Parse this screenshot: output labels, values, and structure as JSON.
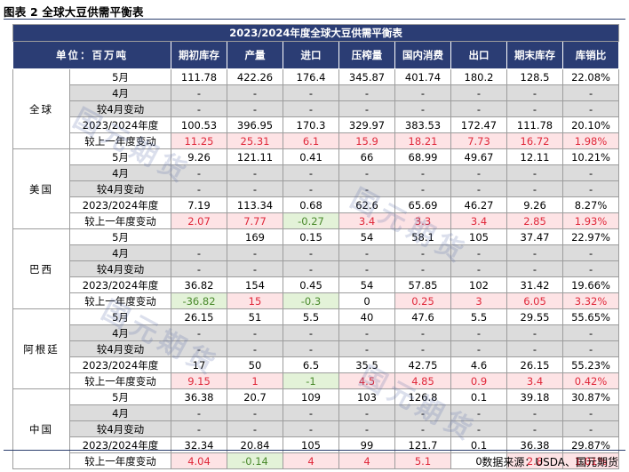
{
  "caption": "图表 2 全球大豆供需平衡表",
  "table_title": "2023/2024年度全球大豆供需平衡表",
  "unit_label": "单位：百万吨",
  "columns": [
    "期初库存",
    "产量",
    "进口",
    "压榨量",
    "国内消费",
    "出口",
    "期末库存",
    "库销比"
  ],
  "regions": [
    {
      "name": "全球",
      "rows": [
        {
          "label": "5月",
          "values": [
            "111.78",
            "422.26",
            "176.4",
            "345.87",
            "401.74",
            "180.2",
            "128.5",
            "22.08%"
          ]
        },
        {
          "label": "4月",
          "values": [
            "-",
            "-",
            "-",
            "-",
            "-",
            "-",
            "-",
            "-"
          ]
        },
        {
          "label": "较4月变动",
          "values": [
            "-",
            "-",
            "-",
            "-",
            "-",
            "-",
            "-",
            "-"
          ]
        },
        {
          "label": "2023/2024年度",
          "values": [
            "100.53",
            "396.95",
            "170.3",
            "329.97",
            "383.53",
            "172.47",
            "111.78",
            "20.10%"
          ]
        },
        {
          "label": "较上一年度变动",
          "values": [
            "11.25",
            "25.31",
            "6.1",
            "15.9",
            "18.21",
            "7.73",
            "16.72",
            "1.98%"
          ]
        }
      ]
    },
    {
      "name": "美国",
      "rows": [
        {
          "label": "5月",
          "values": [
            "9.26",
            "121.11",
            "0.41",
            "66",
            "68.99",
            "49.67",
            "12.11",
            "10.21%"
          ]
        },
        {
          "label": "4月",
          "values": [
            "-",
            "-",
            "-",
            "-",
            "-",
            "-",
            "-",
            "-"
          ]
        },
        {
          "label": "较4月变动",
          "values": [
            "-",
            "-",
            "-",
            "-",
            "-",
            "-",
            "-",
            "-"
          ]
        },
        {
          "label": "2023/2024年度",
          "values": [
            "7.19",
            "113.34",
            "0.68",
            "62.6",
            "65.69",
            "46.27",
            "9.26",
            "8.27%"
          ]
        },
        {
          "label": "较上一年度变动",
          "values": [
            "2.07",
            "7.77",
            "-0.27",
            "3.4",
            "3.3",
            "3.4",
            "2.85",
            "1.93%"
          ]
        }
      ]
    },
    {
      "name": "巴西",
      "rows": [
        {
          "label": "5月",
          "values": [
            "",
            "169",
            "0.15",
            "54",
            "58.1",
            "105",
            "37.47",
            "22.97%"
          ]
        },
        {
          "label": "4月",
          "values": [
            "-",
            "-",
            "-",
            "-",
            "-",
            "-",
            "-",
            "-"
          ]
        },
        {
          "label": "较4月变动",
          "values": [
            "-",
            "-",
            "-",
            "-",
            "-",
            "-",
            "-",
            "-"
          ]
        },
        {
          "label": "2023/2024年度",
          "values": [
            "36.82",
            "154",
            "0.45",
            "54",
            "57.85",
            "102",
            "31.42",
            "19.66%"
          ]
        },
        {
          "label": "较上一年度变动",
          "values": [
            "-36.82",
            "15",
            "-0.3",
            "0",
            "0.25",
            "3",
            "6.05",
            "3.32%"
          ]
        }
      ]
    },
    {
      "name": "阿根廷",
      "rows": [
        {
          "label": "5月",
          "values": [
            "26.15",
            "51",
            "5.5",
            "40",
            "47.6",
            "5.5",
            "29.55",
            "55.65%"
          ]
        },
        {
          "label": "4月",
          "values": [
            "-",
            "-",
            "-",
            "-",
            "-",
            "-",
            "-",
            "-"
          ]
        },
        {
          "label": "较4月变动",
          "values": [
            "-",
            "-",
            "-",
            "-",
            "-",
            "-",
            "-",
            "-"
          ]
        },
        {
          "label": "2023/2024年度",
          "values": [
            "17",
            "50",
            "6.5",
            "35.5",
            "42.75",
            "4.6",
            "26.15",
            "55.23%"
          ]
        },
        {
          "label": "较上一年度变动",
          "values": [
            "9.15",
            "1",
            "-1",
            "4.5",
            "4.85",
            "0.9",
            "3.4",
            "0.42%"
          ]
        }
      ]
    },
    {
      "name": "中国",
      "rows": [
        {
          "label": "5月",
          "values": [
            "36.38",
            "20.7",
            "109",
            "103",
            "126.8",
            "0.1",
            "39.18",
            "30.87%"
          ]
        },
        {
          "label": "4月",
          "values": [
            "-",
            "-",
            "-",
            "-",
            "-",
            "-",
            "-",
            "-"
          ]
        },
        {
          "label": "较4月变动",
          "values": [
            "-",
            "-",
            "-",
            "-",
            "-",
            "-",
            "-",
            "-"
          ]
        },
        {
          "label": "2023/2024年度",
          "values": [
            "32.34",
            "20.84",
            "105",
            "99",
            "121.7",
            "0.1",
            "36.38",
            "29.87%"
          ]
        },
        {
          "label": "较上一年度变动",
          "values": [
            "4.04",
            "-0.14",
            "4",
            "4",
            "5.1",
            "0",
            "2.8",
            "1.01%"
          ]
        }
      ]
    }
  ],
  "colors": {
    "header_bg": "#2b3d74",
    "positive_bg": "#fde3e5",
    "positive_text": "#e0283a",
    "negative_bg": "#e3f2d8",
    "negative_text": "#4a8a2c",
    "grey_row": "#dcdcdc"
  },
  "source": "数据来源：USDA、国元期货",
  "watermark": "国元期货"
}
